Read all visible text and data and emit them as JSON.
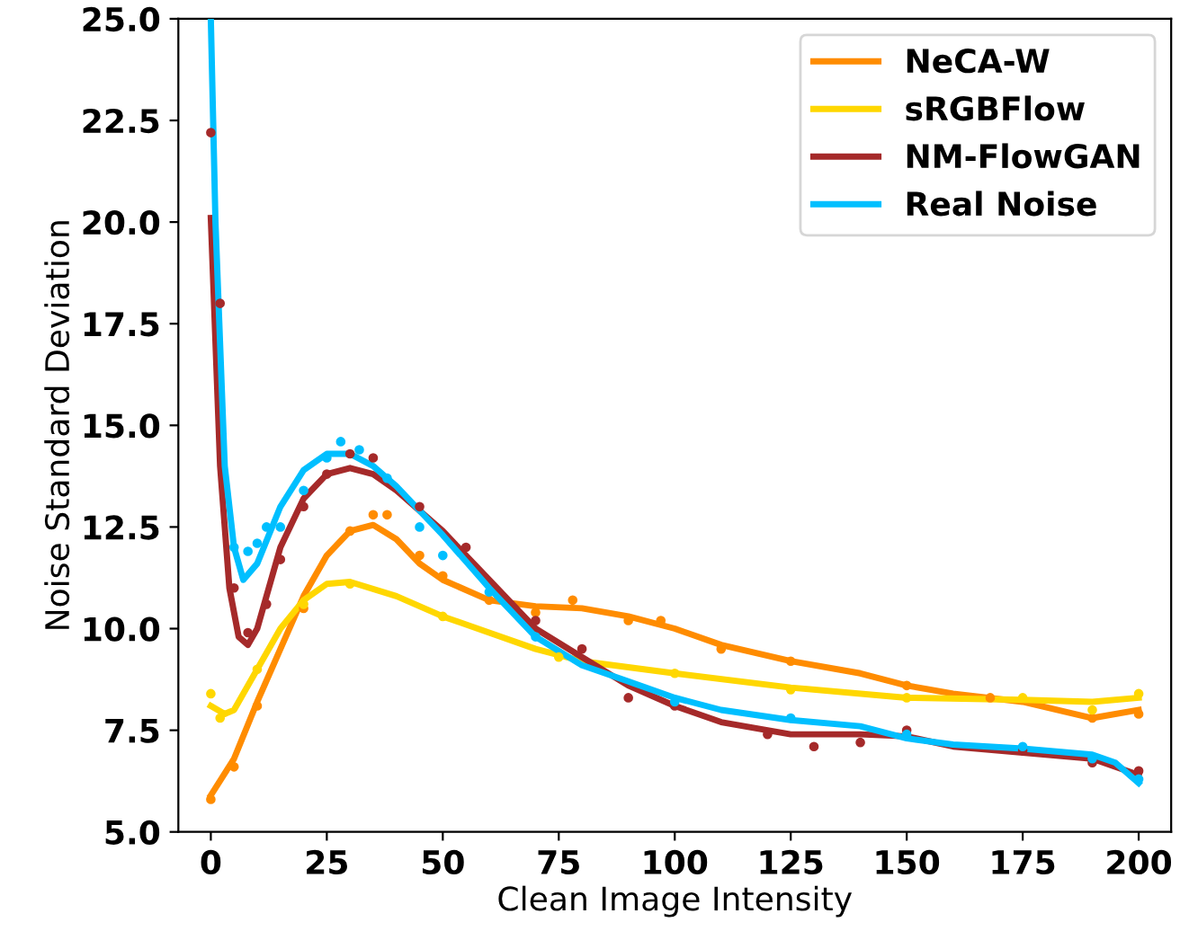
{
  "chart_data": {
    "type": "line",
    "xlabel": "Clean Image Intensity",
    "ylabel": "Noise Standard Deviation",
    "xlim": [
      -7,
      207
    ],
    "xticks": [
      0,
      25,
      50,
      75,
      100,
      125,
      150,
      175,
      200
    ],
    "ylim": [
      5.0,
      25.0
    ],
    "yticks": [
      {
        "value": 5.0,
        "label": "5.0"
      },
      {
        "value": 7.5,
        "label": "7.5"
      },
      {
        "value": 10.0,
        "label": "10.0"
      },
      {
        "value": 12.5,
        "label": "12.5"
      },
      {
        "value": 15.0,
        "label": "15.0"
      },
      {
        "value": 17.5,
        "label": "17.5"
      },
      {
        "value": 20.0,
        "label": "20.0"
      },
      {
        "value": 22.5,
        "label": "22.5"
      },
      {
        "value": 25.0,
        "label": "25.0"
      }
    ],
    "grid": false,
    "legend": "top right",
    "series": [
      {
        "name": "NeCA-W",
        "color": "#ff8c00",
        "x": [
          0,
          5,
          10,
          15,
          20,
          25,
          30,
          35,
          40,
          45,
          50,
          60,
          70,
          80,
          90,
          100,
          110,
          125,
          140,
          150,
          160,
          175,
          190,
          200
        ],
        "values": [
          5.9,
          6.8,
          8.2,
          9.5,
          10.8,
          11.8,
          12.4,
          12.55,
          12.2,
          11.6,
          11.2,
          10.7,
          10.55,
          10.5,
          10.3,
          10.0,
          9.6,
          9.2,
          8.9,
          8.6,
          8.4,
          8.2,
          7.8,
          8.0
        ]
      },
      {
        "name": "sRGBFlow",
        "color": "#ffd700",
        "x": [
          0,
          3,
          5,
          10,
          15,
          20,
          25,
          30,
          40,
          50,
          60,
          70,
          80,
          100,
          125,
          150,
          175,
          190,
          200
        ],
        "values": [
          8.1,
          7.9,
          8.0,
          9.0,
          10.0,
          10.7,
          11.1,
          11.15,
          10.8,
          10.3,
          9.9,
          9.5,
          9.2,
          8.9,
          8.55,
          8.3,
          8.25,
          8.2,
          8.3
        ]
      },
      {
        "name": "NM-FlowGAN",
        "color": "#a52a2a",
        "x": [
          0,
          2,
          4,
          6,
          8,
          10,
          15,
          20,
          25,
          30,
          35,
          40,
          50,
          60,
          70,
          80,
          90,
          100,
          110,
          125,
          140,
          150,
          160,
          175,
          190,
          200
        ],
        "values": [
          20.1,
          14,
          11,
          9.8,
          9.6,
          10.0,
          12,
          13.2,
          13.8,
          13.95,
          13.8,
          13.4,
          12.4,
          11.2,
          10.0,
          9.3,
          8.6,
          8.1,
          7.7,
          7.4,
          7.4,
          7.35,
          7.1,
          6.95,
          6.8,
          6.4
        ]
      },
      {
        "name": "Real Noise",
        "color": "#00bfff",
        "x": [
          0,
          1,
          3,
          5,
          7,
          10,
          15,
          20,
          25,
          30,
          35,
          40,
          50,
          60,
          70,
          80,
          90,
          100,
          110,
          125,
          140,
          150,
          160,
          175,
          190,
          195,
          200
        ],
        "values": [
          25,
          20,
          14,
          12,
          11.2,
          11.6,
          13,
          13.9,
          14.3,
          14.3,
          14.0,
          13.5,
          12.3,
          11.0,
          9.8,
          9.1,
          8.7,
          8.3,
          8.0,
          7.75,
          7.6,
          7.3,
          7.15,
          7.05,
          6.9,
          6.7,
          6.2
        ]
      },
      {
        "type": "scatter",
        "color": "#ff8c00",
        "x": [
          0,
          5,
          10,
          20,
          30,
          35,
          38,
          45,
          50,
          60,
          70,
          78,
          90,
          97,
          110,
          125,
          150,
          168,
          190,
          200
        ],
        "values": [
          5.8,
          6.6,
          8.1,
          10.5,
          12.4,
          12.8,
          12.8,
          11.8,
          11.3,
          10.7,
          10.4,
          10.7,
          10.2,
          10.2,
          9.5,
          9.2,
          8.6,
          8.3,
          7.8,
          7.9
        ]
      },
      {
        "type": "scatter",
        "color": "#ffd700",
        "x": [
          0,
          2,
          10,
          20,
          30,
          50,
          75,
          100,
          125,
          150,
          175,
          190,
          200
        ],
        "values": [
          8.4,
          7.8,
          9.0,
          10.6,
          11.1,
          10.3,
          9.3,
          8.9,
          8.5,
          8.3,
          8.3,
          8.0,
          8.4
        ]
      },
      {
        "type": "scatter",
        "color": "#a52a2a",
        "x": [
          0,
          2,
          5,
          8,
          12,
          15,
          20,
          25,
          30,
          35,
          45,
          55,
          70,
          80,
          90,
          100,
          120,
          130,
          140,
          150,
          175,
          190,
          200
        ],
        "values": [
          22.2,
          18,
          11,
          9.9,
          10.6,
          11.7,
          13,
          13.8,
          14.3,
          14.2,
          13.0,
          12,
          10.2,
          9.5,
          8.3,
          8.1,
          7.4,
          7.1,
          7.2,
          7.5,
          7.0,
          6.7,
          6.5
        ]
      },
      {
        "type": "scatter",
        "color": "#00bfff",
        "x": [
          5,
          8,
          10,
          12,
          15,
          20,
          25,
          28,
          32,
          38,
          45,
          50,
          60,
          70,
          100,
          125,
          150,
          175,
          190,
          200
        ],
        "values": [
          12,
          11.9,
          12.1,
          12.5,
          12.5,
          13.4,
          14.2,
          14.6,
          14.4,
          13.7,
          12.5,
          11.8,
          10.9,
          9.8,
          8.2,
          7.8,
          7.4,
          7.1,
          6.8,
          6.3
        ]
      }
    ]
  }
}
